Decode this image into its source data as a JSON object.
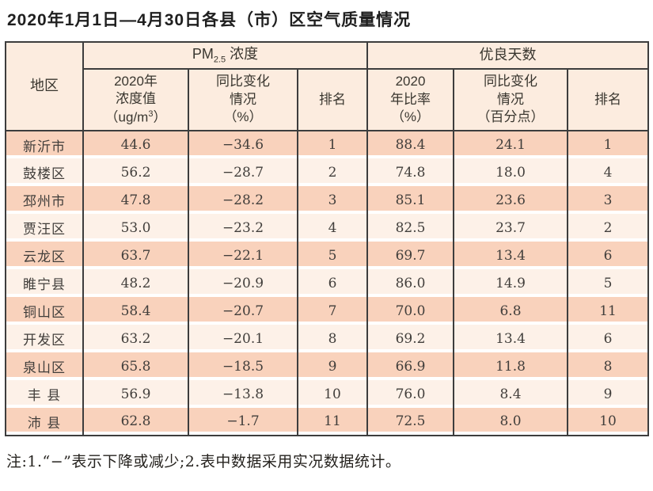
{
  "page": {
    "title": "2020年1月1日—4月30日各县（市）区空气质量情况",
    "note": "注:1.“−”表示下降或减少;2.表中数据采用实况数据统计。"
  },
  "table": {
    "region_header": "地区",
    "group_pm": {
      "prefix": "PM",
      "sub": "2.5",
      "suffix": " 浓度"
    },
    "group_good": "优良天数",
    "headers": {
      "pm_value_l1": "2020年",
      "pm_value_l2": "浓度值",
      "pm_unit_pre": "（ug/m",
      "pm_unit_sup": "3",
      "pm_unit_post": "）",
      "pm_change": "同比变化\n情况\n（%）",
      "pm_rank": "排名",
      "good_rate": "2020\n年比率\n（%）",
      "good_change": "同比变化\n情况\n（百分点）",
      "good_rank": "排名"
    },
    "rows": [
      {
        "region": "新沂市",
        "pm_value": "44.6",
        "pm_change": "−34.6",
        "pm_rank": "1",
        "good_rate": "88.4",
        "good_change": "24.1",
        "good_rank": "1"
      },
      {
        "region": "鼓楼区",
        "pm_value": "56.2",
        "pm_change": "−28.7",
        "pm_rank": "2",
        "good_rate": "74.8",
        "good_change": "18.0",
        "good_rank": "4"
      },
      {
        "region": "邳州市",
        "pm_value": "47.8",
        "pm_change": "−28.2",
        "pm_rank": "3",
        "good_rate": "85.1",
        "good_change": "23.6",
        "good_rank": "3"
      },
      {
        "region": "贾汪区",
        "pm_value": "53.0",
        "pm_change": "−23.2",
        "pm_rank": "4",
        "good_rate": "82.5",
        "good_change": "23.7",
        "good_rank": "2"
      },
      {
        "region": "云龙区",
        "pm_value": "63.7",
        "pm_change": "−22.1",
        "pm_rank": "5",
        "good_rate": "69.7",
        "good_change": "13.4",
        "good_rank": "6"
      },
      {
        "region": "睢宁县",
        "pm_value": "48.2",
        "pm_change": "−20.9",
        "pm_rank": "6",
        "good_rate": "86.0",
        "good_change": "14.9",
        "good_rank": "5"
      },
      {
        "region": "铜山区",
        "pm_value": "58.4",
        "pm_change": "−20.7",
        "pm_rank": "7",
        "good_rate": "70.0",
        "good_change": "6.8",
        "good_rank": "11"
      },
      {
        "region": "开发区",
        "pm_value": "63.2",
        "pm_change": "−20.1",
        "pm_rank": "8",
        "good_rate": "69.2",
        "good_change": "13.4",
        "good_rank": "6"
      },
      {
        "region": "泉山区",
        "pm_value": "65.8",
        "pm_change": "−18.5",
        "pm_rank": "9",
        "good_rate": "66.9",
        "good_change": "11.8",
        "good_rank": "8"
      },
      {
        "region": "丰 县",
        "pm_value": "56.9",
        "pm_change": "−13.8",
        "pm_rank": "10",
        "good_rate": "76.0",
        "good_change": "8.4",
        "good_rank": "9"
      },
      {
        "region": "沛 县",
        "pm_value": "62.8",
        "pm_change": "−1.7",
        "pm_rank": "11",
        "good_rate": "72.5",
        "good_change": "8.0",
        "good_rank": "10"
      }
    ]
  },
  "colors": {
    "row_odd": "#f9d2bc",
    "row_even": "#fdf1e8",
    "header_bg": "#fcecdf",
    "border": "#3d3d3d"
  }
}
